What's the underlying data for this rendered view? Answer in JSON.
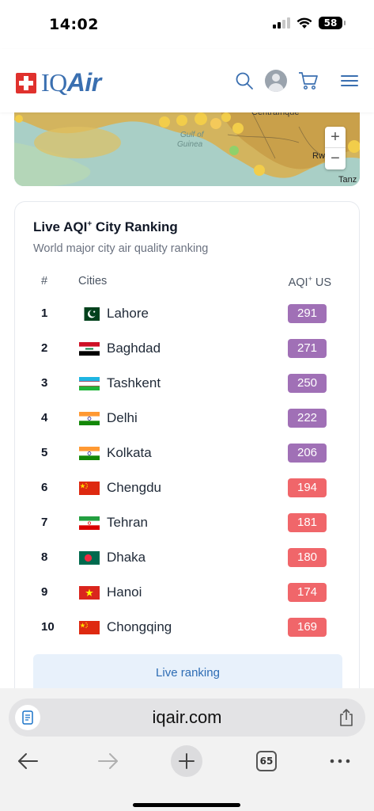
{
  "status_bar": {
    "time": "14:02",
    "battery": "58"
  },
  "brand": {
    "name_part1": "IQ",
    "name_part2": "Air"
  },
  "header": {
    "icons": [
      "search-icon",
      "avatar",
      "cart-icon",
      "menu-icon"
    ]
  },
  "map": {
    "labels": [
      "Centrafrique",
      "Gulf of",
      "Guinea",
      "Rwanda",
      "Tanz"
    ],
    "zoom_in": "+",
    "zoom_out": "−"
  },
  "ranking": {
    "title": "Live AQI",
    "title_sup": "+",
    "title_rest": " City Ranking",
    "subtitle": "World major city air quality ranking",
    "columns": {
      "rank": "#",
      "city": "Cities",
      "aqi": "AQI",
      "aqi_sup": "+",
      "aqi_unit": " US"
    },
    "rows": [
      {
        "rank": "1",
        "city": "Lahore",
        "aqi": "291",
        "color": "#a070b6",
        "flag": "pakistan"
      },
      {
        "rank": "2",
        "city": "Baghdad",
        "aqi": "271",
        "color": "#a070b6",
        "flag": "iraq"
      },
      {
        "rank": "3",
        "city": "Tashkent",
        "aqi": "250",
        "color": "#a070b6",
        "flag": "uzbekistan"
      },
      {
        "rank": "4",
        "city": "Delhi",
        "aqi": "222",
        "color": "#a070b6",
        "flag": "india"
      },
      {
        "rank": "5",
        "city": "Kolkata",
        "aqi": "206",
        "color": "#a070b6",
        "flag": "india"
      },
      {
        "rank": "6",
        "city": "Chengdu",
        "aqi": "194",
        "color": "#f0666a",
        "flag": "china"
      },
      {
        "rank": "7",
        "city": "Tehran",
        "aqi": "181",
        "color": "#f0666a",
        "flag": "iran"
      },
      {
        "rank": "8",
        "city": "Dhaka",
        "aqi": "180",
        "color": "#f0666a",
        "flag": "bangladesh"
      },
      {
        "rank": "9",
        "city": "Hanoi",
        "aqi": "174",
        "color": "#f0666a",
        "flag": "vietnam"
      },
      {
        "rank": "10",
        "city": "Chongqing",
        "aqi": "169",
        "color": "#f0666a",
        "flag": "china"
      }
    ],
    "button": "Live ranking"
  },
  "browser": {
    "url": "iqair.com",
    "tab_count": "65",
    "icons": [
      "reader-icon",
      "share-icon",
      "back-icon",
      "forward-icon",
      "new-tab-icon",
      "tabs-icon",
      "more-icon"
    ]
  }
}
